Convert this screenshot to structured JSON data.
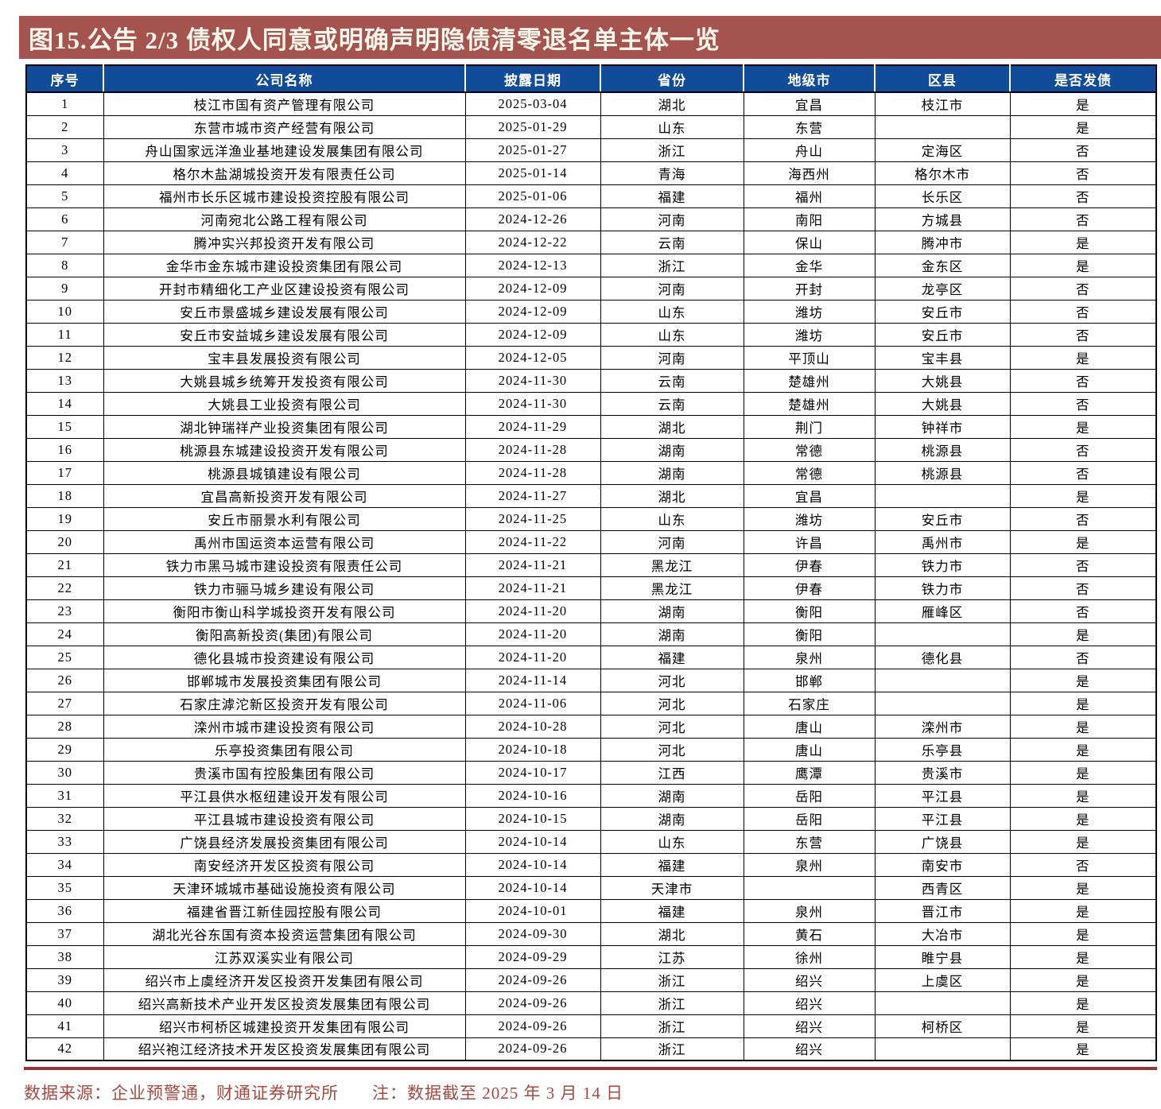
{
  "title": "图15.公告 2/3 债权人同意或明确声明隐债清零退名单主体一览",
  "table": {
    "headers": [
      "序号",
      "公司名称",
      "披露日期",
      "省份",
      "地级市",
      "区县",
      "是否发债"
    ],
    "column_keys": [
      "seq",
      "company",
      "disclosure-date",
      "province",
      "city",
      "district",
      "bond-issued"
    ],
    "rows": [
      [
        "1",
        "枝江市国有资产管理有限公司",
        "2025-03-04",
        "湖北",
        "宜昌",
        "枝江市",
        "是"
      ],
      [
        "2",
        "东营市城市资产经营有限公司",
        "2025-01-29",
        "山东",
        "东营",
        "",
        "是"
      ],
      [
        "3",
        "舟山国家远洋渔业基地建设发展集团有限公司",
        "2025-01-27",
        "浙江",
        "舟山",
        "定海区",
        "否"
      ],
      [
        "4",
        "格尔木盐湖城投资开发有限责任公司",
        "2025-01-14",
        "青海",
        "海西州",
        "格尔木市",
        "否"
      ],
      [
        "5",
        "福州市长乐区城市建设投资控股有限公司",
        "2025-01-06",
        "福建",
        "福州",
        "长乐区",
        "否"
      ],
      [
        "6",
        "河南宛北公路工程有限公司",
        "2024-12-26",
        "河南",
        "南阳",
        "方城县",
        "否"
      ],
      [
        "7",
        "腾冲实兴邦投资开发有限公司",
        "2024-12-22",
        "云南",
        "保山",
        "腾冲市",
        "是"
      ],
      [
        "8",
        "金华市金东城市建设投资集团有限公司",
        "2024-12-13",
        "浙江",
        "金华",
        "金东区",
        "是"
      ],
      [
        "9",
        "开封市精细化工产业区建设投资有限公司",
        "2024-12-09",
        "河南",
        "开封",
        "龙亭区",
        "否"
      ],
      [
        "10",
        "安丘市景盛城乡建设发展有限公司",
        "2024-12-09",
        "山东",
        "潍坊",
        "安丘市",
        "否"
      ],
      [
        "11",
        "安丘市安益城乡建设发展有限公司",
        "2024-12-09",
        "山东",
        "潍坊",
        "安丘市",
        "否"
      ],
      [
        "12",
        "宝丰县发展投资有限公司",
        "2024-12-05",
        "河南",
        "平顶山",
        "宝丰县",
        "是"
      ],
      [
        "13",
        "大姚县城乡统筹开发投资有限公司",
        "2024-11-30",
        "云南",
        "楚雄州",
        "大姚县",
        "否"
      ],
      [
        "14",
        "大姚县工业投资有限公司",
        "2024-11-30",
        "云南",
        "楚雄州",
        "大姚县",
        "否"
      ],
      [
        "15",
        "湖北钟瑞祥产业投资集团有限公司",
        "2024-11-29",
        "湖北",
        "荆门",
        "钟祥市",
        "是"
      ],
      [
        "16",
        "桃源县东城建设投资开发有限公司",
        "2024-11-28",
        "湖南",
        "常德",
        "桃源县",
        "否"
      ],
      [
        "17",
        "桃源县城镇建设有限公司",
        "2024-11-28",
        "湖南",
        "常德",
        "桃源县",
        "否"
      ],
      [
        "18",
        "宜昌高新投资开发有限公司",
        "2024-11-27",
        "湖北",
        "宜昌",
        "",
        "是"
      ],
      [
        "19",
        "安丘市丽景水利有限公司",
        "2024-11-25",
        "山东",
        "潍坊",
        "安丘市",
        "否"
      ],
      [
        "20",
        "禹州市国运资本运营有限公司",
        "2024-11-22",
        "河南",
        "许昌",
        "禹州市",
        "是"
      ],
      [
        "21",
        "铁力市黑马城市建设投资有限责任公司",
        "2024-11-21",
        "黑龙江",
        "伊春",
        "铁力市",
        "否"
      ],
      [
        "22",
        "铁力市骊马城乡建设有限公司",
        "2024-11-21",
        "黑龙江",
        "伊春",
        "铁力市",
        "否"
      ],
      [
        "23",
        "衡阳市衡山科学城投资开发有限公司",
        "2024-11-20",
        "湖南",
        "衡阳",
        "雁峰区",
        "否"
      ],
      [
        "24",
        "衡阳高新投资(集团)有限公司",
        "2024-11-20",
        "湖南",
        "衡阳",
        "",
        "是"
      ],
      [
        "25",
        "德化县城市投资建设有限公司",
        "2024-11-20",
        "福建",
        "泉州",
        "德化县",
        "否"
      ],
      [
        "26",
        "邯郸城市发展投资集团有限公司",
        "2024-11-14",
        "河北",
        "邯郸",
        "",
        "是"
      ],
      [
        "27",
        "石家庄滹沱新区投资开发有限公司",
        "2024-11-06",
        "河北",
        "石家庄",
        "",
        "是"
      ],
      [
        "28",
        "滦州市城市建设投资有限公司",
        "2024-10-28",
        "河北",
        "唐山",
        "滦州市",
        "是"
      ],
      [
        "29",
        "乐亭投资集团有限公司",
        "2024-10-18",
        "河北",
        "唐山",
        "乐亭县",
        "是"
      ],
      [
        "30",
        "贵溪市国有控股集团有限公司",
        "2024-10-17",
        "江西",
        "鹰潭",
        "贵溪市",
        "是"
      ],
      [
        "31",
        "平江县供水枢纽建设开发有限公司",
        "2024-10-16",
        "湖南",
        "岳阳",
        "平江县",
        "是"
      ],
      [
        "32",
        "平江县城市建设投资有限公司",
        "2024-10-15",
        "湖南",
        "岳阳",
        "平江县",
        "是"
      ],
      [
        "33",
        "广饶县经济发展投资集团有限公司",
        "2024-10-14",
        "山东",
        "东营",
        "广饶县",
        "是"
      ],
      [
        "34",
        "南安经济开发区投资有限公司",
        "2024-10-14",
        "福建",
        "泉州",
        "南安市",
        "否"
      ],
      [
        "35",
        "天津环城城市基础设施投资有限公司",
        "2024-10-14",
        "天津市",
        "",
        "西青区",
        "是"
      ],
      [
        "36",
        "福建省晋江新佳园控股有限公司",
        "2024-10-01",
        "福建",
        "泉州",
        "晋江市",
        "是"
      ],
      [
        "37",
        "湖北光谷东国有资本投资运营集团有限公司",
        "2024-09-30",
        "湖北",
        "黄石",
        "大冶市",
        "是"
      ],
      [
        "38",
        "江苏双溪实业有限公司",
        "2024-09-29",
        "江苏",
        "徐州",
        "睢宁县",
        "是"
      ],
      [
        "39",
        "绍兴市上虞经济开发区投资开发集团有限公司",
        "2024-09-26",
        "浙江",
        "绍兴",
        "上虞区",
        "是"
      ],
      [
        "40",
        "绍兴高新技术产业开发区投资发展集团有限公司",
        "2024-09-26",
        "浙江",
        "绍兴",
        "",
        "是"
      ],
      [
        "41",
        "绍兴市柯桥区城建投资开发集团有限公司",
        "2024-09-26",
        "浙江",
        "绍兴",
        "柯桥区",
        "是"
      ],
      [
        "42",
        "绍兴袍江经济技术开发区投资发展集团有限公司",
        "2024-09-26",
        "浙江",
        "绍兴",
        "",
        "是"
      ]
    ]
  },
  "footer": {
    "source": "数据来源：企业预警通，财通证券研究所",
    "note": "注：数据截至 2025 年 3 月 14 日"
  },
  "colors": {
    "title_bar_bg": "#A4534E",
    "title_text": "#FDF6EA",
    "header_bg": "#114C9B",
    "header_text": "#FFFFFF",
    "grid": "#000000",
    "footer_rule": "#8C3A32",
    "footer_text": "#A64B41"
  }
}
